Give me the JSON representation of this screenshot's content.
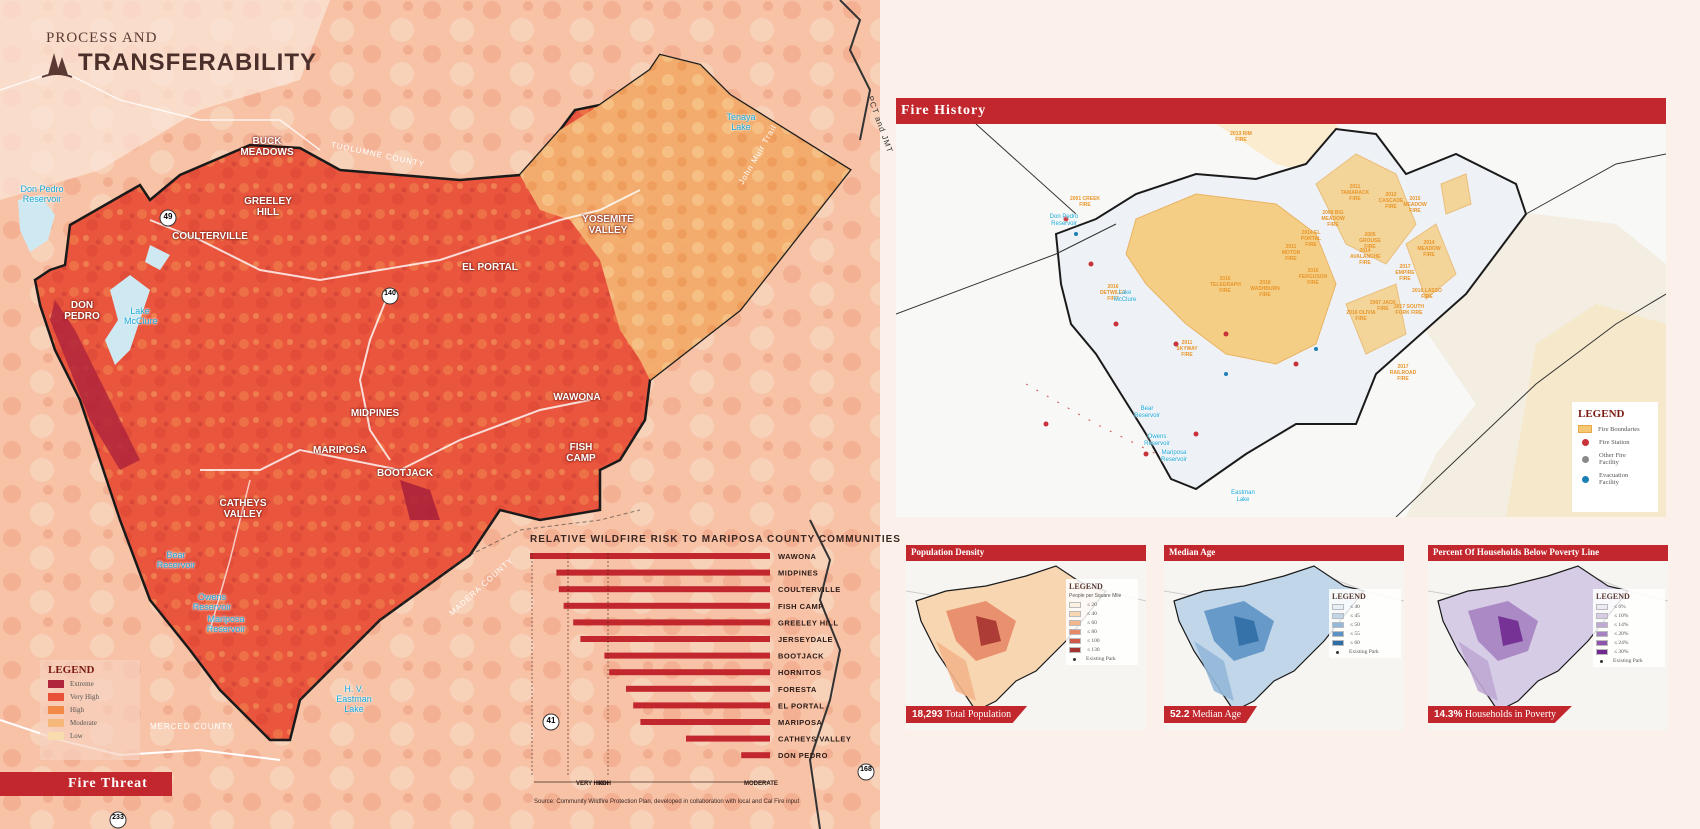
{
  "brand": {
    "line1": "PROCESS AND",
    "line2": "TRANSFERABILITY"
  },
  "fire_threat": {
    "title": "Fire Threat",
    "legend": {
      "title": "LEGEND",
      "items": [
        {
          "label": "Extreme",
          "color": "#b0253b"
        },
        {
          "label": "Very High",
          "color": "#e8503a"
        },
        {
          "label": "High",
          "color": "#f28a48"
        },
        {
          "label": "Moderate",
          "color": "#f6b87a"
        },
        {
          "label": "Low",
          "color": "#f8dcae"
        }
      ]
    },
    "places": [
      "BUCK MEADOWS",
      "GREELEY HILL",
      "COULTERVILLE",
      "YOSEMITE VALLEY",
      "EL PORTAL",
      "DON PEDRO",
      "MIDPINES",
      "MARIPOSA",
      "BOOTJACK",
      "WAWONA",
      "FISH CAMP",
      "CATHEYS VALLEY"
    ],
    "water": [
      "Don Pedro Reservoir",
      "Lake McClure",
      "Tenaya Lake",
      "Bear Reservoir",
      "Owens Reservoir",
      "Mariposa Reservoir",
      "H. V. Eastman Lake"
    ],
    "counties": [
      "TUOLUMNE COUNTY",
      "MERCED COUNTY",
      "MADERA COUNTY"
    ],
    "roads": [
      "John Muir Trail",
      "PCT and JMT"
    ],
    "shields": [
      "49",
      "140",
      "41",
      "168",
      "233"
    ]
  },
  "risk_chart": {
    "title": "RELATIVE WILDFIRE RISK TO MARIPOSA COUNTY COMMUNITIES",
    "axis_labels": {
      "very_high": "VERY HIGH",
      "high": "HIGH",
      "moderate": "MODERATE"
    },
    "source": "Source: Community Wildfire Protection Plan, developed in collaboration with local and Cal Fire input"
  },
  "chart_data": {
    "type": "bar",
    "title": "RELATIVE WILDFIRE RISK TO MARIPOSA COUNTY COMMUNITIES",
    "orientation": "horizontal",
    "categories": [
      "WAWONA",
      "MIDPINES",
      "COULTERVILLE",
      "FISH CAMP",
      "GREELEY HILL",
      "JERSEYDALE",
      "BOOTJACK",
      "HORNITOS",
      "FORESTA",
      "EL PORTAL",
      "MARIPOSA",
      "CATHEYS VALLEY",
      "DON PEDRO"
    ],
    "values": [
      100,
      89,
      88,
      86,
      82,
      79,
      69,
      67,
      60,
      57,
      54,
      35,
      12
    ],
    "xlim": [
      0,
      100
    ]
  },
  "fire_history": {
    "title": "Fire History",
    "fires": [
      "2013 RIM FIRE",
      "2001 CREEK FIRE",
      "2011 TAMARACK FIRE",
      "2012 CASCADE FIRE",
      "2009 BIG MEADOW FIRE",
      "2014 EL PORTAL FIRE",
      "2005 GROUSE FIRE",
      "2011 MOTOR FIRE",
      "2016 FERGUSON FIRE",
      "2014 AVALANCHE FIRE",
      "2017 EMPIRE FIRE",
      "2016 LASSO FIRE",
      "2017 SOUTH FORK FIRE",
      "2007 JACK FIRE",
      "2016 OLIVIA FIRE",
      "2017 RAILROAD FIRE",
      "2011 SKYWAY FIRE",
      "2016 TELEGRAPH FIRE",
      "2016 DETWILER FIRE",
      "2018 WASHBURN FIRE",
      "2015 MEADOW FIRE",
      "2014 MEADOW FIRE"
    ],
    "water": [
      "Don Pedro Reservoir",
      "Lake McClure",
      "Bear Reservoir",
      "Owens Reservoir",
      "Mariposa Reservoir",
      "Eastman Lake"
    ],
    "legend": {
      "title": "LEGEND",
      "items": [
        {
          "label": "Fire Boundaries",
          "color": "#f6c872",
          "shape": "rect"
        },
        {
          "label": "Fire Station",
          "color": "#c8323a",
          "shape": "dot"
        },
        {
          "label": "Other Fire Facility",
          "color": "#8a8a8a",
          "shape": "dot"
        },
        {
          "label": "Evacuation Facility",
          "color": "#1c7fb4",
          "shape": "dot"
        }
      ]
    }
  },
  "panels": [
    {
      "title": "Population Density",
      "stat_value": "18,293",
      "stat_label": "Total Population",
      "legend_title": "LEGEND",
      "legend_sub": "People per Square Mile",
      "legend_items": [
        "≤ 20",
        "≤ 40",
        "≤ 60",
        "≤ 80",
        "≤ 100",
        "≤ 130"
      ],
      "colors": [
        "#fdf2e2",
        "#f8d6b2",
        "#f3b58b",
        "#e78966",
        "#d0584a",
        "#a5332f"
      ],
      "park_label": "Existing Park"
    },
    {
      "title": "Median Age",
      "stat_value": "52.2",
      "stat_label": "Median Age",
      "legend_title": "LEGEND",
      "legend_sub": "",
      "legend_items": [
        "≤ 40",
        "≤ 45",
        "≤ 50",
        "≤ 55",
        "≤ 60"
      ],
      "colors": [
        "#e6eef6",
        "#c2d6ea",
        "#93b8da",
        "#5d93c4",
        "#2f6ea5"
      ],
      "park_label": "Existing Park"
    },
    {
      "title": "Percent Of Households Below Poverty Line",
      "stat_value": "14.3%",
      "stat_label": "Households in Poverty",
      "legend_title": "LEGEND",
      "legend_sub": "",
      "legend_items": [
        "≤ 6%",
        "≤ 10%",
        "≤ 14%",
        "≤ 20%",
        "≤ 24%",
        "≤ 30%"
      ],
      "colors": [
        "#eeeaf4",
        "#d6cce5",
        "#bfa8d4",
        "#a582c1",
        "#8c55ab",
        "#70298f"
      ],
      "park_label": "Existing Park"
    }
  ]
}
